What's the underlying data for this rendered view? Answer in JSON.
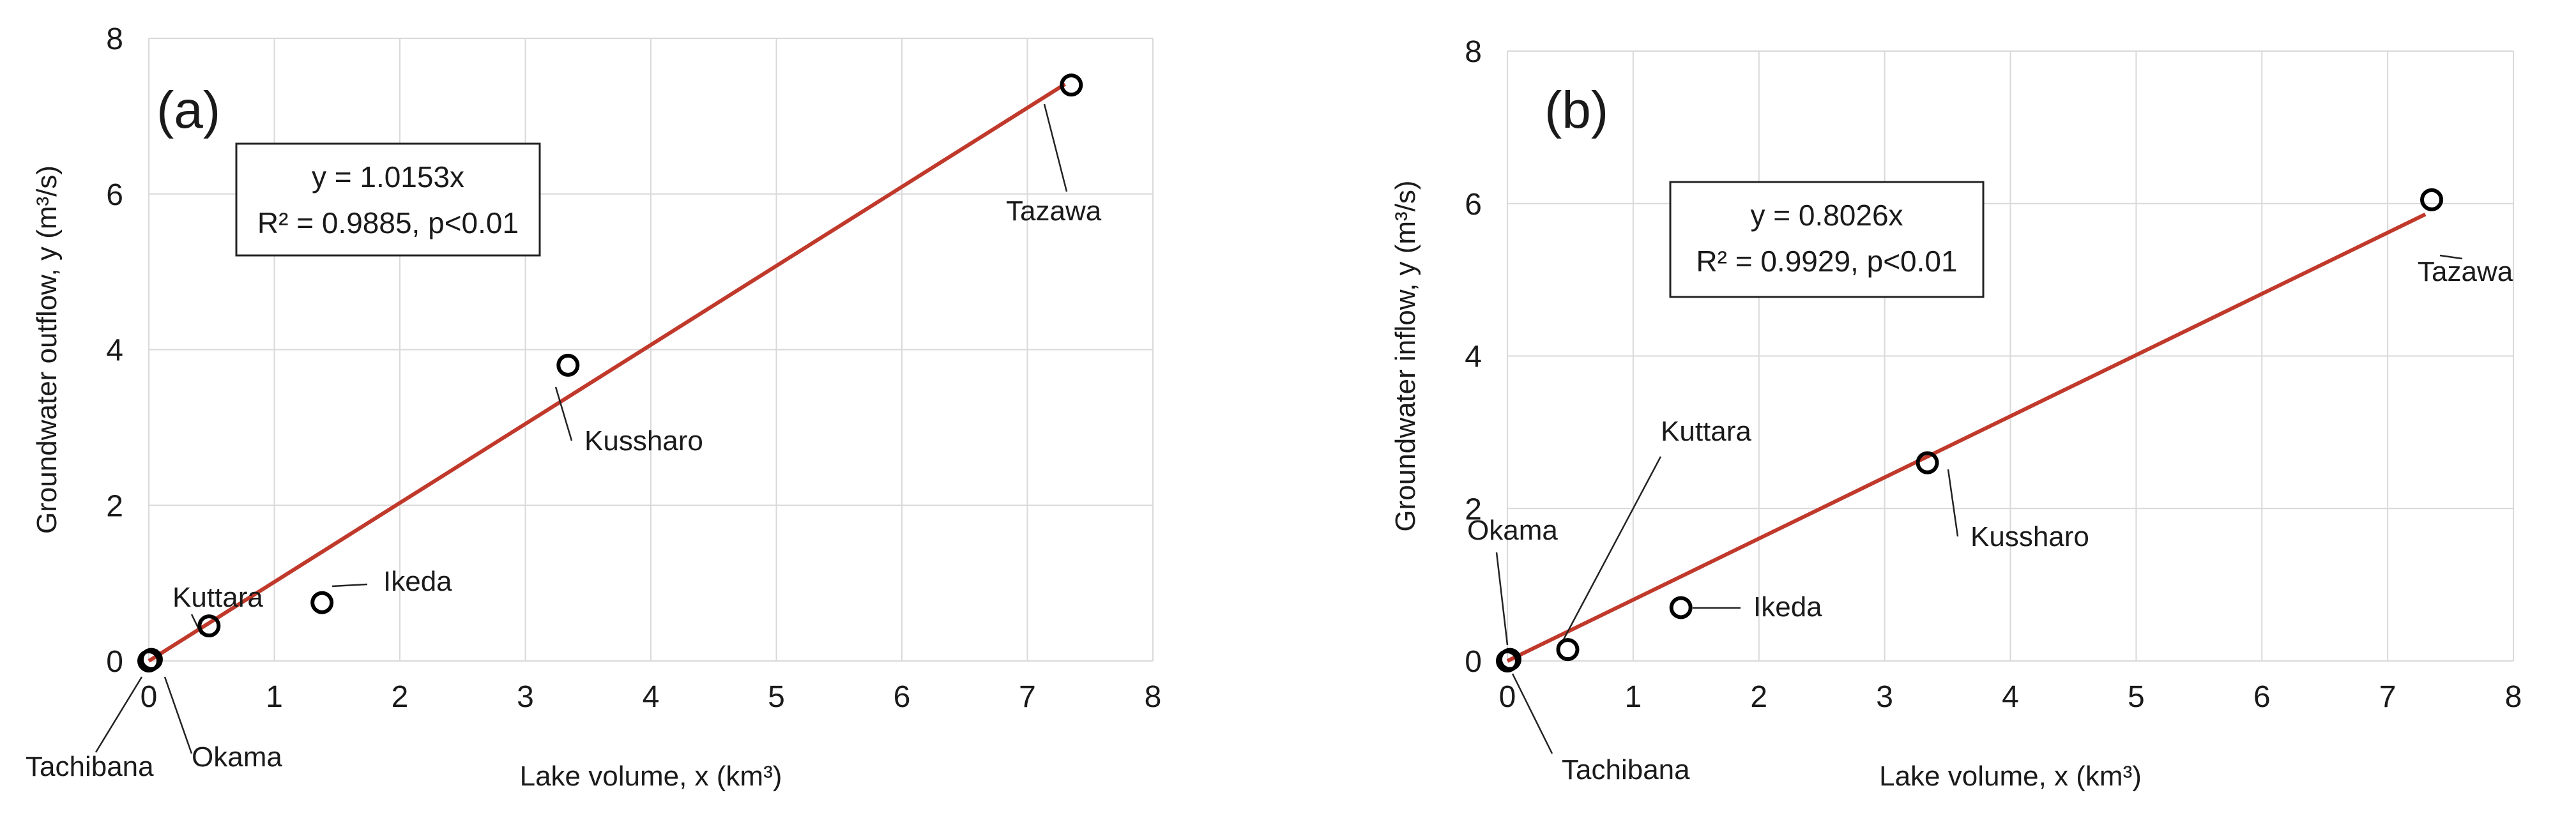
{
  "chart_data": [
    {
      "type": "scatter",
      "panel_label": "(a)",
      "xlabel": "Lake volume, x (km³)",
      "ylabel": "Groundwater outflow, y (m³/s)",
      "xlim": [
        0,
        8
      ],
      "ylim": [
        0,
        8
      ],
      "xticks": [
        "0",
        "1",
        "2",
        "3",
        "4",
        "5",
        "6",
        "7",
        "8"
      ],
      "yticks": [
        "0",
        "2",
        "4",
        "6",
        "8"
      ],
      "grid": "horizontal and vertical",
      "marker_color": "#000000",
      "points": [
        {
          "label": "Tachibana",
          "x": 0.0,
          "y": 0.0
        },
        {
          "label": "Okama",
          "x": 0.02,
          "y": 0.02
        },
        {
          "label": "Kuttara",
          "x": 0.48,
          "y": 0.45
        },
        {
          "label": "Ikeda",
          "x": 1.38,
          "y": 0.75
        },
        {
          "label": "Kussharo",
          "x": 3.34,
          "y": 3.8
        },
        {
          "label": "Tazawa",
          "x": 7.35,
          "y": 7.4
        }
      ],
      "fit": {
        "slope": 1.0153,
        "color": "#c0392b",
        "x_range": [
          0,
          7.3
        ]
      },
      "equation": "y = 1.0153x",
      "stats": "R² = 0.9885, p<0.01"
    },
    {
      "type": "scatter",
      "panel_label": "(b)",
      "xlabel": "Lake volume, x (km³)",
      "ylabel": "Groundwater inflow, y (m³/s)",
      "xlim": [
        0,
        8
      ],
      "ylim": [
        0,
        8
      ],
      "xticks": [
        "0",
        "1",
        "2",
        "3",
        "4",
        "5",
        "6",
        "7",
        "8"
      ],
      "yticks": [
        "0",
        "2",
        "4",
        "6",
        "8"
      ],
      "grid": "horizontal and vertical",
      "marker_color": "#000000",
      "points": [
        {
          "label": "Tachibana",
          "x": 0.0,
          "y": 0.0
        },
        {
          "label": "Okama",
          "x": 0.02,
          "y": 0.02
        },
        {
          "label": "Kuttara",
          "x": 0.48,
          "y": 0.15
        },
        {
          "label": "Ikeda",
          "x": 1.38,
          "y": 0.7
        },
        {
          "label": "Kussharo",
          "x": 3.34,
          "y": 2.6
        },
        {
          "label": "Tazawa",
          "x": 7.35,
          "y": 6.05
        }
      ],
      "fit": {
        "slope": 0.8026,
        "color": "#c0392b",
        "x_range": [
          0,
          7.3
        ]
      },
      "equation": "y = 0.8026x",
      "stats": "R² = 0.9929, p<0.01"
    }
  ]
}
